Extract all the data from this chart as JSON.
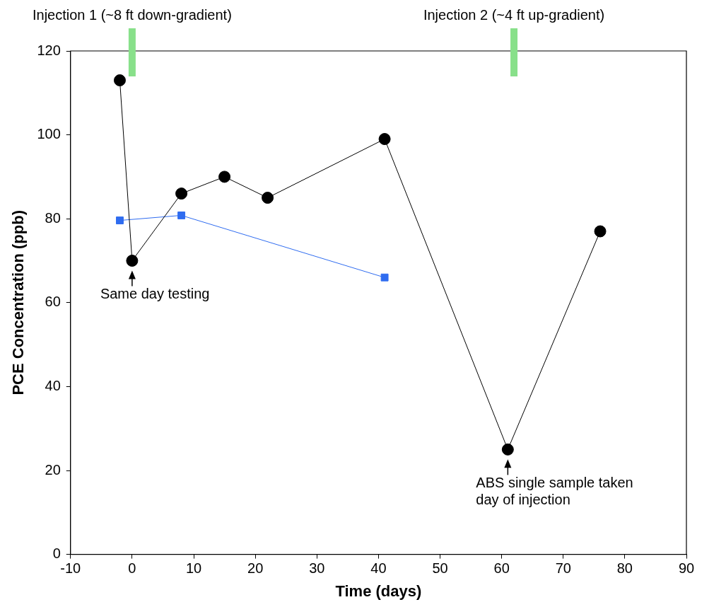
{
  "chart_data": {
    "type": "line",
    "xlabel": "Time (days)",
    "ylabel": "PCE Concentration (ppb)",
    "xlim": [
      -10,
      90
    ],
    "xticks": [
      -10,
      0,
      10,
      20,
      30,
      40,
      50,
      60,
      70,
      80,
      90
    ],
    "ylim": [
      0,
      120
    ],
    "yticks": [
      0,
      20,
      40,
      60,
      80,
      100,
      120
    ],
    "grid": false,
    "legend": false,
    "series": [
      {
        "color": "#000000",
        "marker": "circle",
        "x": [
          -2,
          0,
          8,
          15,
          22,
          41,
          61,
          76
        ],
        "values": [
          113,
          70,
          86,
          90,
          85,
          99,
          25,
          77
        ]
      },
      {
        "color": "#2f6cf0",
        "marker": "square",
        "x": [
          -2,
          8,
          41
        ],
        "values": [
          79.6,
          80.8,
          66
        ]
      }
    ],
    "ref_lines": [
      {
        "axis": "x",
        "value": 0,
        "label": "Injection 1 (~8 ft down-gradient)",
        "color": "#88e08a"
      },
      {
        "axis": "x",
        "value": 62,
        "label": "Injection 2 (~4 ft up-gradient)",
        "color": "#88e08a"
      }
    ],
    "annotations": [
      {
        "text": "Same day testing",
        "x": 0,
        "y": 70
      },
      {
        "text": "ABS single sample taken  day of injection",
        "x": 61,
        "y": 25
      }
    ]
  }
}
